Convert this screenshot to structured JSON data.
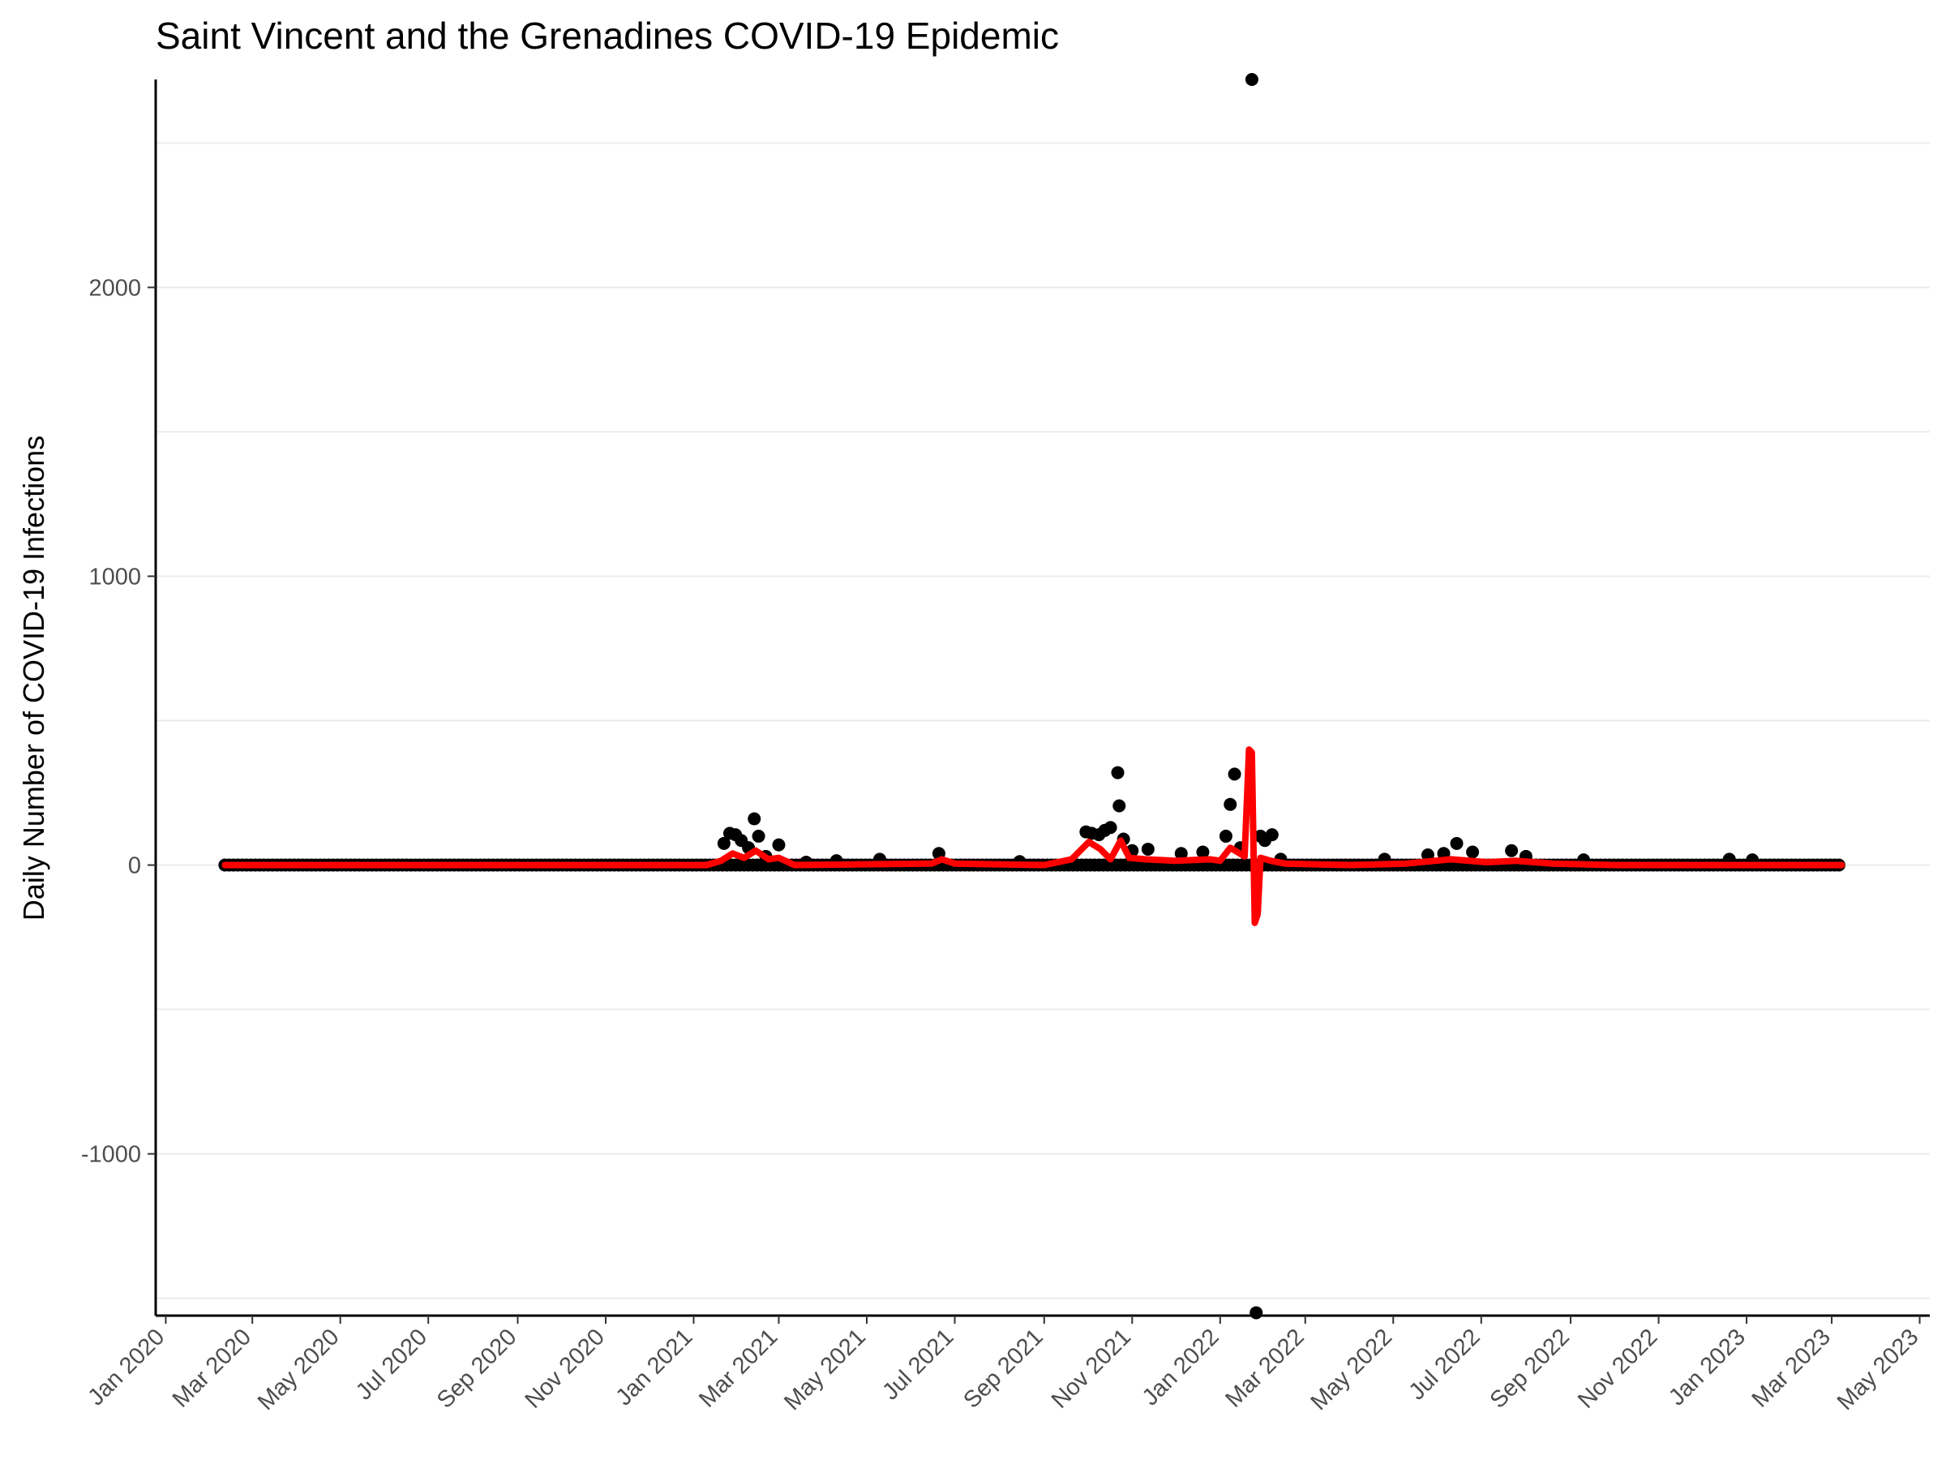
{
  "chart_data": {
    "type": "scatter",
    "title": "Saint Vincent and the Grenadines COVID-19 Epidemic",
    "xlabel": "",
    "ylabel": "Daily Number of COVID-19 Infections",
    "x_ticks": [
      "Jan 2020",
      "Mar 2020",
      "May 2020",
      "Jul 2020",
      "Sep 2020",
      "Nov 2020",
      "Jan 2021",
      "Mar 2021",
      "May 2021",
      "Jul 2021",
      "Sep 2021",
      "Nov 2021",
      "Jan 2022",
      "Mar 2022",
      "May 2022",
      "Jul 2022",
      "Sep 2022",
      "Nov 2022",
      "Jan 2023",
      "Mar 2023",
      "May 2023"
    ],
    "x_tick_dates": [
      "2020-01-01",
      "2020-03-01",
      "2020-05-01",
      "2020-07-01",
      "2020-09-01",
      "2020-11-01",
      "2021-01-01",
      "2021-03-01",
      "2021-05-01",
      "2021-07-01",
      "2021-09-01",
      "2021-11-01",
      "2022-01-01",
      "2022-03-01",
      "2022-05-01",
      "2022-07-01",
      "2022-09-01",
      "2022-11-01",
      "2023-01-01",
      "2023-03-01",
      "2023-05-01"
    ],
    "y_ticks": [
      "-1000",
      "0",
      "1000",
      "2000"
    ],
    "y_tick_values": [
      -1000,
      0,
      1000,
      2000
    ],
    "xlim": [
      "2019-12-25",
      "2023-05-08"
    ],
    "ylim": [
      -1560,
      2720
    ],
    "grid": "horizontal",
    "series": [
      {
        "kind": "points",
        "color": "#000000",
        "baseline": {
          "start": "2020-02-11",
          "end": "2023-03-08",
          "value": 0
        },
        "values": [
          {
            "x": "2021-01-22",
            "y": 75
          },
          {
            "x": "2021-01-26",
            "y": 110
          },
          {
            "x": "2021-01-30",
            "y": 105
          },
          {
            "x": "2021-02-03",
            "y": 85
          },
          {
            "x": "2021-02-08",
            "y": 60
          },
          {
            "x": "2021-02-12",
            "y": 160
          },
          {
            "x": "2021-02-15",
            "y": 100
          },
          {
            "x": "2021-02-20",
            "y": 30
          },
          {
            "x": "2021-03-01",
            "y": 70
          },
          {
            "x": "2021-03-20",
            "y": 10
          },
          {
            "x": "2021-04-10",
            "y": 15
          },
          {
            "x": "2021-05-10",
            "y": 20
          },
          {
            "x": "2021-06-20",
            "y": 40
          },
          {
            "x": "2021-08-15",
            "y": 12
          },
          {
            "x": "2021-09-30",
            "y": 115
          },
          {
            "x": "2021-10-04",
            "y": 110
          },
          {
            "x": "2021-10-09",
            "y": 105
          },
          {
            "x": "2021-10-13",
            "y": 120
          },
          {
            "x": "2021-10-17",
            "y": 130
          },
          {
            "x": "2021-10-22",
            "y": 320
          },
          {
            "x": "2021-10-23",
            "y": 205
          },
          {
            "x": "2021-10-26",
            "y": 90
          },
          {
            "x": "2021-11-01",
            "y": 50
          },
          {
            "x": "2021-11-12",
            "y": 55
          },
          {
            "x": "2021-12-05",
            "y": 40
          },
          {
            "x": "2021-12-20",
            "y": 45
          },
          {
            "x": "2022-01-05",
            "y": 100
          },
          {
            "x": "2022-01-08",
            "y": 210
          },
          {
            "x": "2022-01-11",
            "y": 315
          },
          {
            "x": "2022-01-15",
            "y": 60
          },
          {
            "x": "2022-01-23",
            "y": 2720
          },
          {
            "x": "2022-01-26",
            "y": -1550
          },
          {
            "x": "2022-01-29",
            "y": 100
          },
          {
            "x": "2022-02-01",
            "y": 85
          },
          {
            "x": "2022-02-06",
            "y": 105
          },
          {
            "x": "2022-02-12",
            "y": 20
          },
          {
            "x": "2022-04-25",
            "y": 20
          },
          {
            "x": "2022-05-25",
            "y": 35
          },
          {
            "x": "2022-06-05",
            "y": 40
          },
          {
            "x": "2022-06-14",
            "y": 75
          },
          {
            "x": "2022-06-25",
            "y": 45
          },
          {
            "x": "2022-07-22",
            "y": 50
          },
          {
            "x": "2022-08-01",
            "y": 30
          },
          {
            "x": "2022-09-10",
            "y": 18
          },
          {
            "x": "2022-12-20",
            "y": 20
          },
          {
            "x": "2023-01-05",
            "y": 18
          }
        ]
      },
      {
        "kind": "line",
        "color": "#ff0000",
        "values": [
          {
            "x": "2020-02-11",
            "y": 0
          },
          {
            "x": "2021-01-10",
            "y": 0
          },
          {
            "x": "2021-01-20",
            "y": 15
          },
          {
            "x": "2021-01-28",
            "y": 40
          },
          {
            "x": "2021-02-05",
            "y": 25
          },
          {
            "x": "2021-02-13",
            "y": 50
          },
          {
            "x": "2021-02-22",
            "y": 20
          },
          {
            "x": "2021-03-01",
            "y": 25
          },
          {
            "x": "2021-03-12",
            "y": 0
          },
          {
            "x": "2021-06-15",
            "y": 5
          },
          {
            "x": "2021-06-22",
            "y": 20
          },
          {
            "x": "2021-07-01",
            "y": 5
          },
          {
            "x": "2021-09-01",
            "y": 0
          },
          {
            "x": "2021-09-20",
            "y": 20
          },
          {
            "x": "2021-10-02",
            "y": 80
          },
          {
            "x": "2021-10-10",
            "y": 55
          },
          {
            "x": "2021-10-17",
            "y": 20
          },
          {
            "x": "2021-10-24",
            "y": 85
          },
          {
            "x": "2021-10-30",
            "y": 25
          },
          {
            "x": "2021-11-10",
            "y": 20
          },
          {
            "x": "2021-12-01",
            "y": 15
          },
          {
            "x": "2021-12-25",
            "y": 20
          },
          {
            "x": "2022-01-01",
            "y": 15
          },
          {
            "x": "2022-01-08",
            "y": 60
          },
          {
            "x": "2022-01-13",
            "y": 45
          },
          {
            "x": "2022-01-18",
            "y": 30
          },
          {
            "x": "2022-01-21",
            "y": 400
          },
          {
            "x": "2022-01-23",
            "y": 390
          },
          {
            "x": "2022-01-25",
            "y": -200
          },
          {
            "x": "2022-01-27",
            "y": -170
          },
          {
            "x": "2022-01-29",
            "y": 25
          },
          {
            "x": "2022-02-05",
            "y": 15
          },
          {
            "x": "2022-02-15",
            "y": 5
          },
          {
            "x": "2022-04-01",
            "y": 0
          },
          {
            "x": "2022-05-10",
            "y": 5
          },
          {
            "x": "2022-06-10",
            "y": 20
          },
          {
            "x": "2022-07-05",
            "y": 10
          },
          {
            "x": "2022-07-25",
            "y": 15
          },
          {
            "x": "2022-08-20",
            "y": 5
          },
          {
            "x": "2022-10-01",
            "y": 0
          },
          {
            "x": "2023-03-08",
            "y": 0
          }
        ]
      }
    ]
  }
}
